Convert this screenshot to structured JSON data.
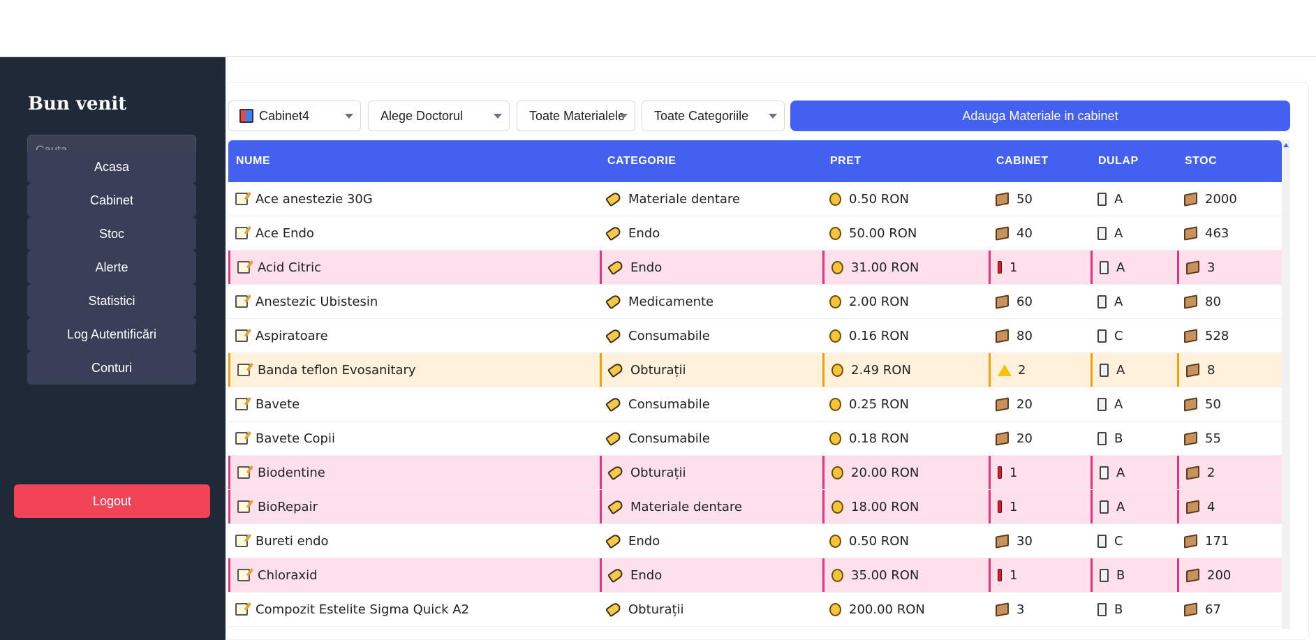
{
  "sidebar": {
    "title": "Bun venit",
    "search_placeholder": "Cauta",
    "nav": [
      "Acasa",
      "Cabinet",
      "Stoc",
      "Alerte",
      "Statistici",
      "Log Autentificări",
      "Conturi"
    ],
    "logout": "Logout"
  },
  "filters": {
    "cabinet": "Cabinet4",
    "doctor": "Alege Doctorul",
    "materials": "Toate Materialele",
    "categories": "Toate Categoriile",
    "add_button": "Adauga Materiale in cabinet"
  },
  "table": {
    "headers": [
      "NUME",
      "CATEGORIE",
      "PRET",
      "CABINET",
      "DULAP",
      "STOC"
    ],
    "rows": [
      {
        "name": "Ace anestezie 30G",
        "category": "Materiale dentare",
        "price": "0.50 RON",
        "cabinet": "50",
        "dulap": "A",
        "stoc": "2000",
        "status": "normal"
      },
      {
        "name": "Ace Endo",
        "category": "Endo",
        "price": "50.00 RON",
        "cabinet": "40",
        "dulap": "A",
        "stoc": "463",
        "status": "normal"
      },
      {
        "name": "Acid Citric",
        "category": "Endo",
        "price": "31.00 RON",
        "cabinet": "1",
        "dulap": "A",
        "stoc": "3",
        "status": "danger"
      },
      {
        "name": "Anestezic Ubistesin",
        "category": "Medicamente",
        "price": "2.00 RON",
        "cabinet": "60",
        "dulap": "A",
        "stoc": "80",
        "status": "normal"
      },
      {
        "name": "Aspiratoare",
        "category": "Consumabile",
        "price": "0.16 RON",
        "cabinet": "80",
        "dulap": "C",
        "stoc": "528",
        "status": "normal"
      },
      {
        "name": "Banda teflon Evosanitary",
        "category": "Obturații",
        "price": "2.49 RON",
        "cabinet": "2",
        "dulap": "A",
        "stoc": "8",
        "status": "warning"
      },
      {
        "name": "Bavete",
        "category": "Consumabile",
        "price": "0.25 RON",
        "cabinet": "20",
        "dulap": "A",
        "stoc": "50",
        "status": "normal"
      },
      {
        "name": "Bavete Copii",
        "category": "Consumabile",
        "price": "0.18 RON",
        "cabinet": "20",
        "dulap": "B",
        "stoc": "55",
        "status": "normal"
      },
      {
        "name": "Biodentine",
        "category": "Obturații",
        "price": "20.00 RON",
        "cabinet": "1",
        "dulap": "A",
        "stoc": "2",
        "status": "danger"
      },
      {
        "name": "BioRepair",
        "category": "Materiale dentare",
        "price": "18.00 RON",
        "cabinet": "1",
        "dulap": "A",
        "stoc": "4",
        "status": "danger"
      },
      {
        "name": "Bureti endo",
        "category": "Endo",
        "price": "0.50 RON",
        "cabinet": "30",
        "dulap": "C",
        "stoc": "171",
        "status": "normal"
      },
      {
        "name": "Chloraxid",
        "category": "Endo",
        "price": "35.00 RON",
        "cabinet": "1",
        "dulap": "B",
        "stoc": "200",
        "status": "danger"
      },
      {
        "name": "Compozit Estelite Sigma Quick A2",
        "category": "Obturații",
        "price": "200.00 RON",
        "cabinet": "3",
        "dulap": "B",
        "stoc": "67",
        "status": "normal"
      }
    ]
  },
  "icons": {
    "name": "memo-icon",
    "category": "tag-icon",
    "price": "money-bag-icon",
    "cabinet_normal": "package-icon",
    "cabinet_danger": "exclamation-icon",
    "cabinet_warning": "warning-icon",
    "dulap": "cabinet-icon",
    "stoc": "package-icon"
  },
  "colors": {
    "accent": "#4361ee",
    "sidebar_bg": "#1f2937",
    "logout": "#f24457",
    "row_danger": "#fde0ec",
    "row_warning": "#fff1dc"
  }
}
